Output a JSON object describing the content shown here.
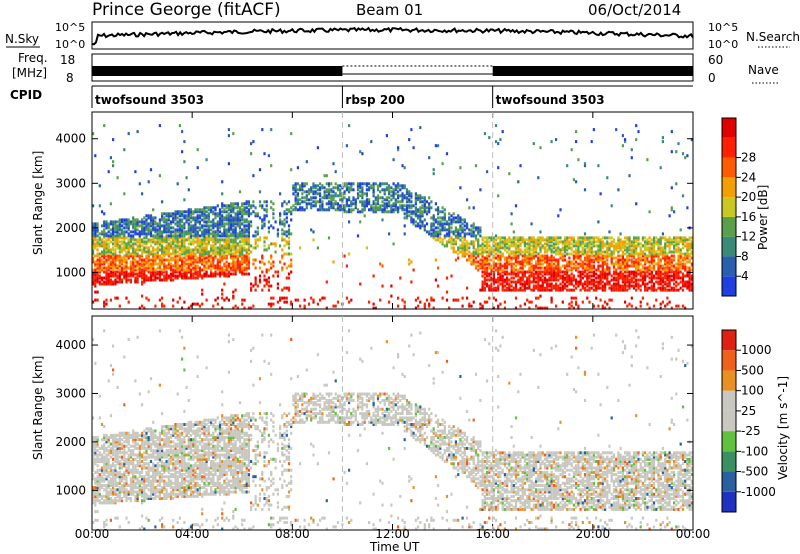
{
  "header": {
    "station": "Prince George (fitACF)",
    "beam": "Beam 01",
    "date": "06/Oct/2014"
  },
  "noise_panel": {
    "left_label": "N.Sky",
    "right_label": "N.Search",
    "left_ticks": [
      "10^5",
      "10^0"
    ],
    "right_ticks": [
      "10^5",
      "10^0"
    ]
  },
  "freq_panel": {
    "left_label_1": "Freq.",
    "left_label_2": "[MHz]",
    "left_ticks": [
      "18",
      "8"
    ],
    "right_label": "Nave",
    "right_ticks": [
      "60",
      "0"
    ]
  },
  "cpid": {
    "label": "CPID",
    "segments": [
      {
        "name": "twofsound 3503",
        "start_hour": 0,
        "end_hour": 10
      },
      {
        "name": "rbsp 200",
        "start_hour": 10,
        "end_hour": 16
      },
      {
        "name": "twofsound 3503",
        "start_hour": 16,
        "end_hour": 24
      }
    ]
  },
  "x_axis": {
    "label": "Time UT",
    "ticks": [
      "00:00",
      "04:00",
      "08:00",
      "12:00",
      "16:00",
      "20:00",
      "00:00"
    ]
  },
  "chart_data": [
    {
      "type": "heatmap",
      "ylabel": "Slant Range [km]",
      "yticks": [
        1000,
        2000,
        3000,
        4000
      ],
      "ylim": [
        180,
        4600
      ],
      "xlim": [
        0,
        24
      ],
      "xunit": "hours UT",
      "colorbar": {
        "label": "Power [dB]",
        "ticks": [
          4,
          8,
          12,
          16,
          20,
          24,
          28
        ],
        "colors": [
          "#1f3fe0",
          "#2a5fb0",
          "#3a8a78",
          "#5aa048",
          "#c8c820",
          "#f0a000",
          "#ff5a00",
          "#ff2000",
          "#e00000"
        ]
      }
    },
    {
      "type": "heatmap",
      "ylabel": "Slant Range [km]",
      "yticks": [
        1000,
        2000,
        3000,
        4000
      ],
      "ylim": [
        180,
        4600
      ],
      "xlim": [
        0,
        24
      ],
      "xunit": "hours UT",
      "colorbar": {
        "label": "Velocity [m s^-1]",
        "ticks": [
          "1000",
          "500",
          "100",
          "25",
          "-25",
          "-100",
          "-500",
          "-1000"
        ],
        "colors": [
          "#2030c0",
          "#2a60a0",
          "#3a9060",
          "#60c040",
          "#c8c8c0",
          "#c8c8c0",
          "#e89020",
          "#f06018",
          "#e02010"
        ]
      }
    }
  ]
}
